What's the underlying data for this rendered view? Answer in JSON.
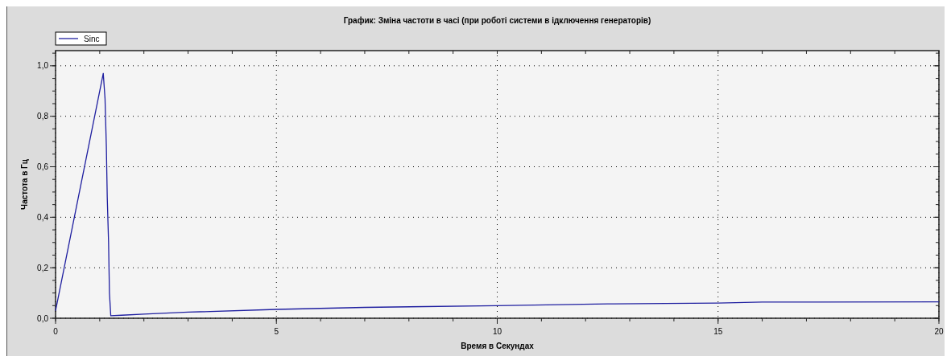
{
  "chart_data": {
    "type": "line",
    "title": "График:  Зміна частоти в часі (при роботі системи в ідключення генераторів)",
    "xlabel": "Время в Секундах",
    "ylabel": "Частота в Гц",
    "x": [
      0,
      1.08,
      1.12,
      1.15,
      1.17,
      1.2,
      1.22,
      1.25,
      1.5,
      2,
      3,
      5,
      7,
      10,
      12.5,
      15,
      16,
      20
    ],
    "series": [
      {
        "name": "Sinc",
        "color": "#1f1fa0",
        "values": [
          0.03,
          0.97,
          0.87,
          0.68,
          0.48,
          0.3,
          0.1,
          0.01,
          0.012,
          0.016,
          0.024,
          0.035,
          0.043,
          0.05,
          0.057,
          0.06,
          0.064,
          0.065
        ]
      }
    ],
    "xlim": [
      0,
      20
    ],
    "xticks": [
      0,
      5,
      10,
      15,
      20
    ],
    "ylim": [
      0,
      1.06
    ],
    "yticks": [
      {
        "value": 0,
        "label": "0,0"
      },
      {
        "value": 0.2,
        "label": "0,2"
      },
      {
        "value": 0.4,
        "label": "0,4"
      },
      {
        "value": 0.6,
        "label": "0,6"
      },
      {
        "value": 0.8,
        "label": "0,8"
      },
      {
        "value": 1,
        "label": "1,0"
      }
    ],
    "grid": true,
    "legend": "top left",
    "marker": "none",
    "line_style": "solid"
  }
}
